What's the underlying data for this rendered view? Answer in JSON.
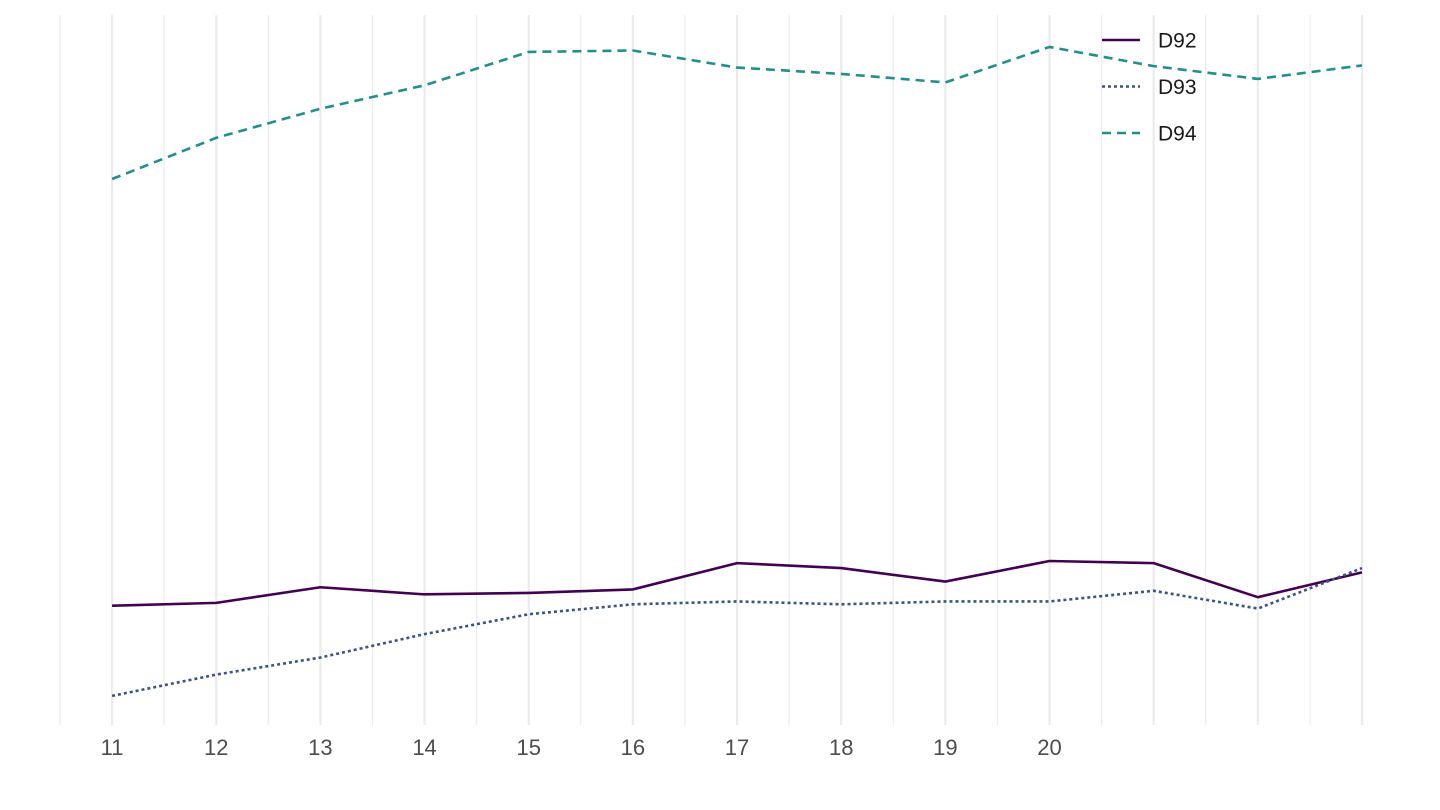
{
  "chart_data": {
    "type": "line",
    "x": [
      11,
      12,
      13,
      14,
      15,
      16,
      17,
      18,
      19,
      20,
      21,
      22,
      23
    ],
    "x_tick_labels": [
      "11",
      "12",
      "13",
      "14",
      "15",
      "16",
      "17",
      "18",
      "19",
      "20"
    ],
    "xlim": [
      10.5,
      23
    ],
    "ylim": [
      0,
      100
    ],
    "grid": {
      "major_x": true,
      "minor_x": true,
      "y": false
    },
    "legend_position": "top-right",
    "series": [
      {
        "name": "D92",
        "color": "#440154",
        "line_style": "solid",
        "values": [
          16.8,
          17.2,
          19.4,
          18.4,
          18.6,
          19.1,
          22.8,
          22.1,
          20.2,
          23.1,
          22.8,
          18.0,
          21.5
        ]
      },
      {
        "name": "D93",
        "color": "#3b528b",
        "line_style": "dotted",
        "values": [
          4.1,
          7.1,
          9.5,
          12.8,
          15.6,
          17.0,
          17.4,
          17.0,
          17.4,
          17.4,
          18.9,
          16.4,
          22.1
        ]
      },
      {
        "name": "D94",
        "color": "#21908c",
        "line_style": "dashed",
        "values": [
          76.9,
          82.7,
          86.8,
          90.1,
          94.8,
          95.0,
          92.6,
          91.7,
          90.5,
          95.5,
          92.8,
          91.0,
          92.9
        ]
      }
    ]
  }
}
